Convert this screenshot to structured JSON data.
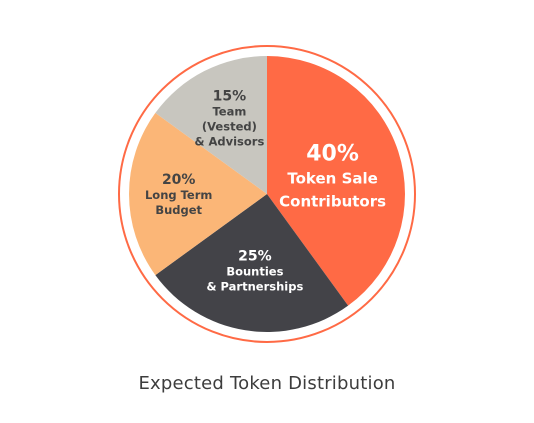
{
  "chart_data": {
    "type": "pie",
    "title": "Expected Token Distribution",
    "slices": [
      {
        "label_lines": [
          "40%",
          "Token Sale",
          "Contributors"
        ],
        "value": 40,
        "color": "#ff6a45",
        "text_color": "#ffffff"
      },
      {
        "label_lines": [
          "25%",
          "Bounties",
          "& Partnerships"
        ],
        "value": 25,
        "color": "#434348",
        "text_color": "#ffffff"
      },
      {
        "label_lines": [
          "20%",
          "Long Term",
          "Budget"
        ],
        "value": 20,
        "color": "#fbb677",
        "text_color": "#444444"
      },
      {
        "label_lines": [
          "15%",
          "Team",
          "(Vested)",
          "& Advisors"
        ],
        "value": 15,
        "color": "#c8c6bf",
        "text_color": "#444444"
      }
    ],
    "ring_color": "#ff6a45"
  }
}
